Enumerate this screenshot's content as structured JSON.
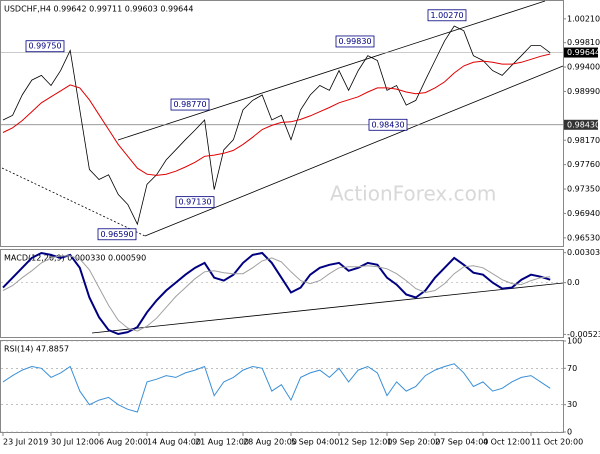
{
  "chart_data": [
    {
      "type": "line",
      "title": "USDCHF,H4  0.99642 0.99711 0.99603 0.99644",
      "watermark": "ActionForex.com",
      "categories": [
        "23 Jul 2019",
        null,
        null,
        null,
        null,
        "30 Jul 12:00",
        null,
        null,
        null,
        null,
        "6 Aug 20:00",
        null,
        null,
        null,
        null,
        "14 Aug 04:00",
        null,
        null,
        null,
        null,
        "21 Aug 12:00",
        null,
        null,
        null,
        null,
        "28 Aug 20:00",
        null,
        null,
        null,
        null,
        "5 Sep 04:00",
        null,
        null,
        null,
        null,
        "12 Sep 12:00",
        null,
        null,
        null,
        null,
        "19 Sep 20:00",
        null,
        null,
        null,
        null,
        "27 Sep 04:00",
        null,
        null,
        null,
        null,
        "4 Oct 12:00",
        null,
        null,
        null,
        null,
        "11 Oct 20:00",
        null,
        null
      ],
      "series": [
        {
          "color": "#000000",
          "values": [
            0.9851,
            0.9859,
            0.9893,
            0.9918,
            0.9926,
            0.9909,
            0.9934,
            0.9968,
            0.9868,
            0.9768,
            0.9751,
            0.9759,
            0.9726,
            0.9709,
            0.9676,
            0.9743,
            0.9759,
            0.9784,
            0.9801,
            0.9818,
            0.9834,
            0.9851,
            0.9734,
            0.9801,
            0.9818,
            0.9868,
            0.9884,
            0.9893,
            0.9851,
            0.9859,
            0.9818,
            0.9868,
            0.9893,
            0.9909,
            0.9901,
            0.9934,
            0.9901,
            0.9934,
            0.9959,
            0.9951,
            0.9901,
            0.9909,
            0.9876,
            0.9884,
            0.9918,
            0.9951,
            0.9984,
            1.0009,
            1.0001,
            0.9959,
            0.9951,
            0.9934,
            0.9926,
            0.9943,
            0.9959,
            0.9976,
            0.9976,
            0.9964
          ]
        },
        {
          "color": "#e00000",
          "values": [
            0.983,
            0.9838,
            0.985,
            0.9865,
            0.988,
            0.989,
            0.99,
            0.991,
            0.9905,
            0.9885,
            0.986,
            0.9835,
            0.981,
            0.979,
            0.977,
            0.976,
            0.9758,
            0.976,
            0.9765,
            0.9772,
            0.978,
            0.979,
            0.9792,
            0.9795,
            0.98,
            0.981,
            0.9822,
            0.9835,
            0.9842,
            0.9847,
            0.9848,
            0.9852,
            0.9858,
            0.9865,
            0.9872,
            0.988,
            0.9885,
            0.989,
            0.9898,
            0.9905,
            0.9905,
            0.9903,
            0.9898,
            0.9895,
            0.9897,
            0.9905,
            0.9915,
            0.993,
            0.9942,
            0.9948,
            0.995,
            0.9948,
            0.9945,
            0.9945,
            0.9948,
            0.9953,
            0.9958,
            0.9962
          ]
        }
      ],
      "ylim": [
        0.96393,
        1.0051
      ],
      "yticks": [
        {
          "value": 1.0021,
          "label": "1.00210"
        },
        {
          "value": 0.9981,
          "label": "0.99810"
        },
        {
          "value": 0.994,
          "label": "0.99400"
        },
        {
          "value": 0.9899,
          "label": "0.98990"
        },
        {
          "value": 0.9817,
          "label": "0.98170"
        },
        {
          "value": 0.9776,
          "label": "0.97760"
        },
        {
          "value": 0.9735,
          "label": "0.97350"
        },
        {
          "value": 0.9694,
          "label": "0.96940"
        },
        {
          "value": 0.9653,
          "label": "0.96530"
        }
      ],
      "levels": [
        {
          "value": 0.9843,
          "label": "0.98430"
        }
      ],
      "last_price": 0.99644,
      "annotations": [
        {
          "value": 0.9975,
          "label": "0.99750"
        },
        {
          "value": 0.9877,
          "label": "0.98770"
        },
        {
          "value": 0.9713,
          "label": "0.97130"
        },
        {
          "value": 0.9659,
          "label": "0.96590"
        },
        {
          "value": 0.9983,
          "label": "0.99830"
        },
        {
          "value": 1.0027,
          "label": "1.00270"
        },
        {
          "value": 0.9843,
          "label": "0.98430"
        }
      ]
    },
    {
      "type": "line",
      "title": "MACD(12,26,9) 0.000330 0.000590",
      "series": [
        {
          "color": "#000080",
          "values": [
            -0.0005,
            0.0005,
            0.0015,
            0.0025,
            0.003,
            0.0028,
            0.0025,
            0.0028,
            0.0015,
            -0.0015,
            -0.0035,
            -0.0048,
            -0.0052,
            -0.005,
            -0.0045,
            -0.003,
            -0.0018,
            -0.0008,
            0.0,
            0.0008,
            0.0015,
            0.002,
            0.0005,
            0.0002,
            0.0008,
            0.002,
            0.0028,
            0.003,
            0.002,
            0.0005,
            -0.001,
            -0.0005,
            0.0008,
            0.0015,
            0.0018,
            0.002,
            0.0012,
            0.0015,
            0.002,
            0.0018,
            0.0005,
            -0.0002,
            -0.0012,
            -0.0015,
            -0.0008,
            0.0005,
            0.0015,
            0.0025,
            0.0018,
            0.001,
            0.0008,
            0.0,
            -0.0006,
            -0.0005,
            0.0003,
            0.0008,
            0.0006,
            0.0003
          ]
        },
        {
          "color": "#a0a0a0",
          "values": [
            -0.0008,
            -0.0003,
            0.0005,
            0.0012,
            0.002,
            0.0025,
            0.0027,
            0.0027,
            0.0024,
            0.0013,
            -0.0005,
            -0.0023,
            -0.0038,
            -0.0046,
            -0.0049,
            -0.0044,
            -0.0036,
            -0.0025,
            -0.0014,
            -0.0005,
            0.0004,
            0.0011,
            0.0012,
            0.001,
            0.0009,
            0.0009,
            0.0015,
            0.0022,
            0.0025,
            0.0021,
            0.0011,
            0.0002,
            -0.0001,
            0.0002,
            0.0009,
            0.0015,
            0.0016,
            0.0016,
            0.0017,
            0.0016,
            0.0014,
            0.0009,
            0.0002,
            -0.0006,
            -0.001,
            -0.0008,
            -0.0001,
            0.0009,
            0.0016,
            0.0017,
            0.0015,
            0.0009,
            0.0003,
            -0.0001,
            -0.0002,
            0.0002,
            0.0005,
            0.0006
          ]
        }
      ],
      "ylim": [
        -0.0055,
        0.0033
      ],
      "yticks": [
        0.00303,
        {
          "value": 0,
          "label": "0.0"
        },
        -0.005236
      ]
    },
    {
      "type": "line",
      "title": "RSI(14) 47.8857",
      "series": [
        {
          "color": "#3a8fd6",
          "values": [
            55,
            62,
            68,
            72,
            70,
            60,
            65,
            72,
            45,
            30,
            35,
            38,
            30,
            25,
            22,
            55,
            58,
            62,
            60,
            65,
            68,
            72,
            40,
            55,
            60,
            68,
            72,
            70,
            45,
            52,
            35,
            60,
            65,
            68,
            60,
            70,
            55,
            68,
            72,
            65,
            40,
            55,
            45,
            50,
            62,
            68,
            72,
            75,
            65,
            50,
            55,
            45,
            48,
            55,
            60,
            62,
            55,
            48
          ]
        }
      ],
      "ylim": [
        0,
        100
      ],
      "yticks": [
        100,
        70,
        30,
        0
      ],
      "grid": true
    }
  ]
}
